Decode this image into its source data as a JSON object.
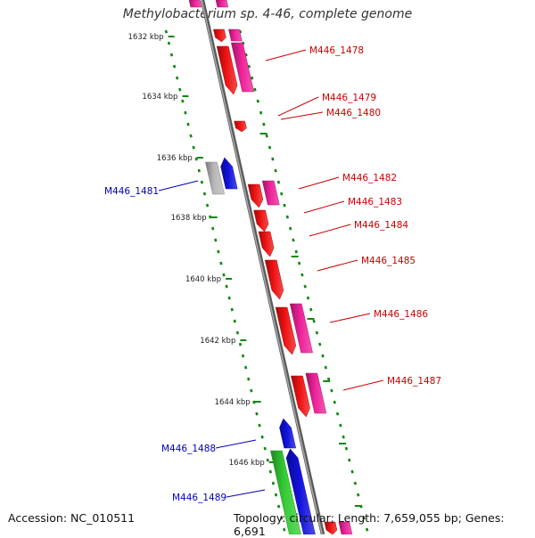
{
  "title": "Methylobacterium sp. 4-46, complete genome",
  "accession_text": "Accession: NC_010511",
  "summary_text": "Topology: circular; Length: 7,659,055 bp; Genes: 6,691",
  "colors": {
    "red": "#ee1111",
    "pink": "#ee2299",
    "blue": "#1111dd",
    "green": "#33cc33",
    "gray": "#b8b8b8",
    "tick": "#118811",
    "axis": "#888888",
    "red_label": "#cc0000",
    "blue_label": "#0000bb"
  },
  "scale_labels": [
    "1632 kbp",
    "1634 kbp",
    "1636 kbp",
    "1638 kbp",
    "1640 kbp",
    "1642 kbp",
    "1644 kbp",
    "1646 kbp"
  ],
  "gene_labels": [
    {
      "text": "M446_1478",
      "color": "red"
    },
    {
      "text": "M446_1479",
      "color": "red"
    },
    {
      "text": "M446_1480",
      "color": "red"
    },
    {
      "text": "M446_1481",
      "color": "blue"
    },
    {
      "text": "M446_1482",
      "color": "red"
    },
    {
      "text": "M446_1483",
      "color": "red"
    },
    {
      "text": "M446_1484",
      "color": "red"
    },
    {
      "text": "M446_1485",
      "color": "red"
    },
    {
      "text": "M446_1486",
      "color": "red"
    },
    {
      "text": "M446_1487",
      "color": "red"
    },
    {
      "text": "M446_1488",
      "color": "blue"
    },
    {
      "text": "M446_1489",
      "color": "blue"
    }
  ]
}
